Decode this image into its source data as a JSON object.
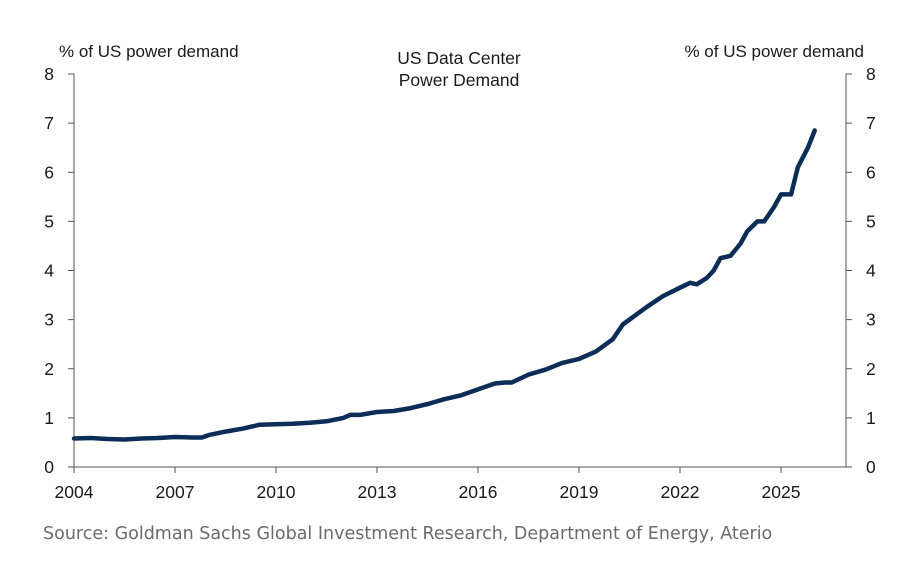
{
  "chart_data": {
    "type": "line",
    "title": "US Data Center Power Demand",
    "title_lines": [
      "US Data Center",
      "Power Demand"
    ],
    "ylabel_left": "% of US power demand",
    "ylabel_right": "% of US power demand",
    "ylim": [
      0,
      8
    ],
    "yticks": [
      0,
      1,
      2,
      3,
      4,
      5,
      6,
      7,
      8
    ],
    "xlim": [
      2004,
      2030
    ],
    "xticks": [
      2004,
      2007,
      2010,
      2013,
      2016,
      2019,
      2022,
      2025
    ],
    "grid": false,
    "line_color": "#0c2d57",
    "series": [
      {
        "x": [
          2004.0,
          2004.5,
          2005.0,
          2005.5,
          2006.0,
          2006.5,
          2007.0,
          2007.5,
          2007.8,
          2008.0,
          2008.5,
          2009.0,
          2009.5,
          2010.0,
          2010.5,
          2011.0,
          2011.5,
          2012.0,
          2012.2,
          2012.5,
          2013.0,
          2013.5,
          2014.0,
          2014.5,
          2015.0,
          2015.5,
          2016.0,
          2016.5,
          2016.8,
          2017.0,
          2017.5,
          2018.0,
          2018.5,
          2019.0,
          2019.5,
          2020.0,
          2020.3,
          2020.7,
          2021.0,
          2021.5,
          2022.0,
          2022.3,
          2022.5,
          2022.8,
          2023.0,
          2023.2,
          2023.5,
          2023.8,
          2024.0,
          2024.3,
          2024.5,
          2024.8,
          2025.0,
          2025.3,
          2025.5,
          2025.8,
          2026.0
        ],
        "y": [
          0.58,
          0.59,
          0.57,
          0.56,
          0.58,
          0.59,
          0.61,
          0.6,
          0.6,
          0.65,
          0.72,
          0.78,
          0.86,
          0.87,
          0.88,
          0.9,
          0.93,
          1.0,
          1.06,
          1.06,
          1.12,
          1.14,
          1.2,
          1.28,
          1.38,
          1.46,
          1.58,
          1.7,
          1.72,
          1.72,
          1.88,
          1.98,
          2.12,
          2.2,
          2.35,
          2.6,
          2.9,
          3.1,
          3.25,
          3.48,
          3.65,
          3.75,
          3.72,
          3.85,
          4.0,
          4.25,
          4.3,
          4.55,
          4.8,
          5.0,
          5.0,
          5.3,
          5.55,
          5.55,
          6.1,
          6.5,
          6.85
        ]
      }
    ]
  },
  "source": "Source: Goldman Sachs Global Investment Research, Department of Energy, Aterio"
}
